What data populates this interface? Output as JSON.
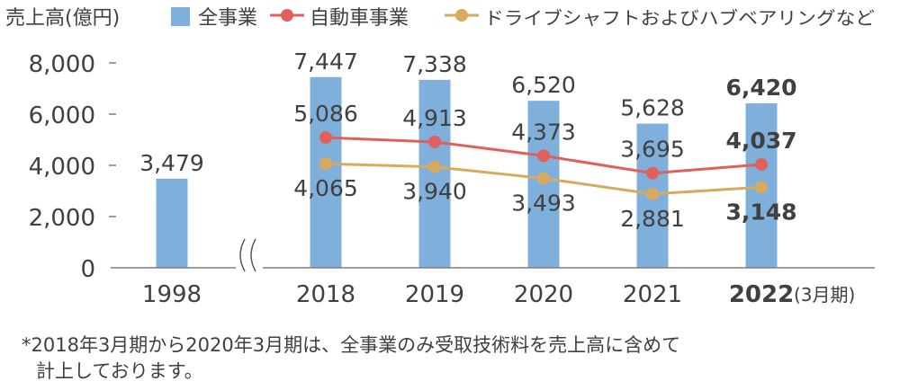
{
  "chart_data": {
    "type": "bar",
    "ylabel": "売上高(億円)",
    "categories": [
      "1998",
      "2018",
      "2019",
      "2020",
      "2021",
      "2022"
    ],
    "category_suffix": "(3月期)",
    "y_ticks": [
      "0",
      "2,000",
      "4,000",
      "6,000",
      "8,000"
    ],
    "ylim": [
      0,
      8000
    ],
    "axis_break": "between 1998 and 2018",
    "legend_position": "top",
    "series": [
      {
        "name": "全事業",
        "type": "bar",
        "color": "#7fb0dc",
        "values": [
          3479,
          7447,
          7338,
          6520,
          5628,
          6420
        ],
        "labels": [
          "3,479",
          "7,447",
          "7,338",
          "6,520",
          "5,628",
          "6,420"
        ]
      },
      {
        "name": "自動車事業",
        "type": "line",
        "color": "#df605c",
        "values": [
          null,
          5086,
          4913,
          4373,
          3695,
          4037
        ],
        "labels": [
          "",
          "5,086",
          "4,913",
          "4,373",
          "3,695",
          "4,037"
        ]
      },
      {
        "name": "ドライブシャフトおよびハブベアリングなど",
        "type": "line",
        "color": "#d7aa5f",
        "values": [
          null,
          4065,
          3940,
          3493,
          2881,
          3148
        ],
        "labels": [
          "",
          "4,065",
          "3,940",
          "3,493",
          "2,881",
          "3,148"
        ]
      }
    ],
    "highlight_category": "2022"
  },
  "footnote": {
    "line1": "*2018年3月期から2020年3月期は、全事業のみ受取技術料を売上高に含めて",
    "line2": "計上しております。"
  }
}
